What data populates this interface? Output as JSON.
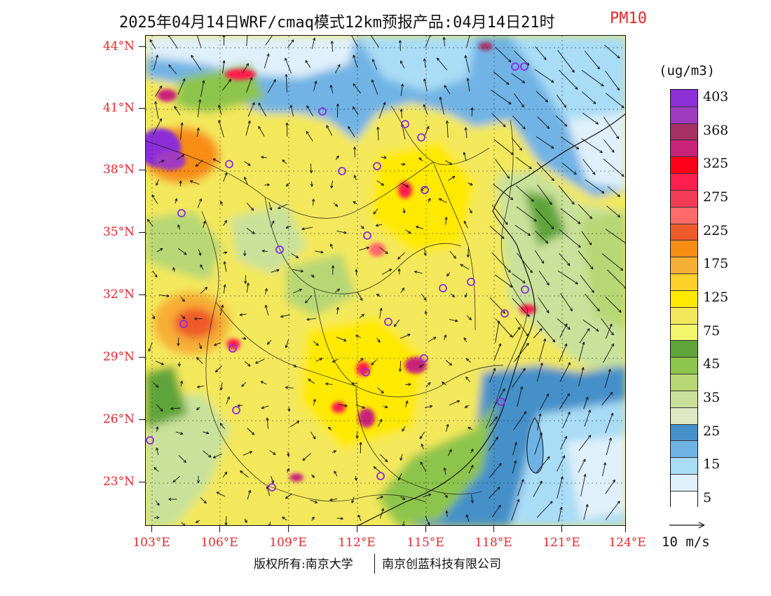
{
  "title": {
    "main": "2025年04月14日WRF/cmaq模式12km预报产品:04月14日21时",
    "pollutant": "PM10"
  },
  "axes": {
    "lat_labels": [
      "44°N",
      "41°N",
      "38°N",
      "35°N",
      "32°N",
      "29°N",
      "26°N",
      "23°N"
    ],
    "lon_labels": [
      "103°E",
      "106°E",
      "109°E",
      "112°E",
      "115°E",
      "118°E",
      "121°E",
      "124°E"
    ]
  },
  "legend": {
    "unit": "(ug/m3)",
    "bins": [
      {
        "color": "#ffffff",
        "label": "5"
      },
      {
        "color": "#dff0fa",
        "label": ""
      },
      {
        "color": "#a9dcf5",
        "label": "15"
      },
      {
        "color": "#6fb3e4",
        "label": ""
      },
      {
        "color": "#4590c9",
        "label": "25"
      },
      {
        "color": "#dde8c3",
        "label": ""
      },
      {
        "color": "#c9e19a",
        "label": "35"
      },
      {
        "color": "#b7d775",
        "label": ""
      },
      {
        "color": "#8dc44c",
        "label": "45"
      },
      {
        "color": "#5fa43a",
        "label": ""
      },
      {
        "color": "#f3f56a",
        "label": "75"
      },
      {
        "color": "#f3e85c",
        "label": ""
      },
      {
        "color": "#ffe900",
        "label": "125"
      },
      {
        "color": "#ffd12a",
        "label": ""
      },
      {
        "color": "#f7ae35",
        "label": "175"
      },
      {
        "color": "#f88d16",
        "label": ""
      },
      {
        "color": "#ee5a2a",
        "label": "225"
      },
      {
        "color": "#ff6b6b",
        "label": ""
      },
      {
        "color": "#f23c55",
        "label": "275"
      },
      {
        "color": "#ff1f4e",
        "label": ""
      },
      {
        "color": "#ff0018",
        "label": "325"
      },
      {
        "color": "#c8237a",
        "label": ""
      },
      {
        "color": "#a73064",
        "label": "368"
      },
      {
        "color": "#a03bc0",
        "label": ""
      },
      {
        "color": "#8c2fd8",
        "label": "403"
      }
    ]
  },
  "vector_key": {
    "label": "10 m/s"
  },
  "footer": {
    "copyright": "版权所有:南京大学",
    "company": "南京创蓝科技有限公司"
  },
  "colors": {
    "axis_label": "#e8262a",
    "station_marker": "#8a2be2"
  }
}
